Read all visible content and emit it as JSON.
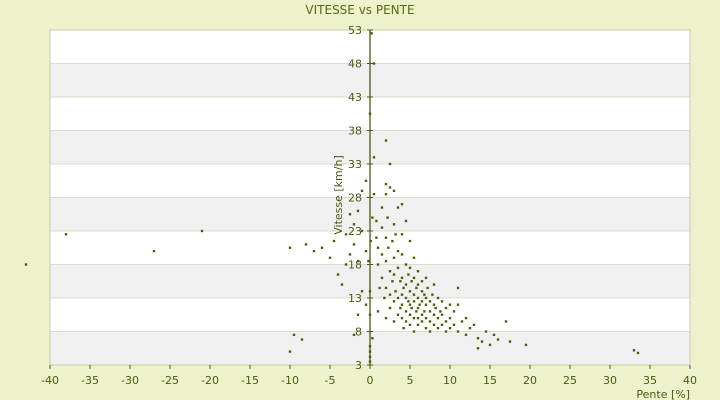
{
  "chart_data": {
    "type": "scatter",
    "title": "VITESSE vs PENTE",
    "xlabel": "Pente [%]",
    "ylabel": "Vitesse [km/h]",
    "xlim": [
      -40,
      40
    ],
    "ylim": [
      3,
      53
    ],
    "x_ticks": [
      -40,
      -35,
      -30,
      -25,
      -20,
      -15,
      -10,
      -5,
      0,
      5,
      10,
      15,
      20,
      25,
      30,
      35,
      40
    ],
    "y_ticks": [
      3,
      8,
      13,
      18,
      23,
      28,
      33,
      38,
      43,
      48,
      53
    ],
    "grid": true,
    "legend": "none",
    "colors": {
      "background": "#eef2cc",
      "band_light": "#ffffff",
      "band_dark": "#f0f0f0",
      "point": "#4f5e08",
      "axis": "#4a5a10"
    },
    "points": [
      [
        -43.0,
        18.0
      ],
      [
        -38.0,
        22.5
      ],
      [
        -27.0,
        20.0
      ],
      [
        -21.0,
        23.0
      ],
      [
        -10.0,
        5.0
      ],
      [
        -9.5,
        7.5
      ],
      [
        -8.5,
        6.8
      ],
      [
        -10.0,
        20.5
      ],
      [
        -8.0,
        21.0
      ],
      [
        -7.0,
        20.0
      ],
      [
        -6.0,
        20.5
      ],
      [
        -5.0,
        19.0
      ],
      [
        -4.5,
        21.5
      ],
      [
        -4.0,
        16.5
      ],
      [
        -3.5,
        15.0
      ],
      [
        -3.0,
        18.0
      ],
      [
        -2.5,
        19.5
      ],
      [
        -2.0,
        21.0
      ],
      [
        -2.0,
        24.0
      ],
      [
        -1.5,
        26.0
      ],
      [
        -1.5,
        18.5
      ],
      [
        -1.0,
        23.0
      ],
      [
        -1.0,
        29.0
      ],
      [
        -3.0,
        22.5
      ],
      [
        -2.5,
        25.5
      ],
      [
        -1.5,
        10.5
      ],
      [
        -2.0,
        7.5
      ],
      [
        -1.0,
        14.0
      ],
      [
        -0.5,
        12.0
      ],
      [
        -0.5,
        20.0
      ],
      [
        -0.2,
        18.5
      ],
      [
        -0.5,
        30.5
      ],
      [
        0.0,
        40.5
      ],
      [
        0.2,
        52.5
      ],
      [
        0.5,
        48.0
      ],
      [
        0.0,
        3.5
      ],
      [
        0.0,
        4.2
      ],
      [
        0.0,
        5.0
      ],
      [
        0.0,
        5.8
      ],
      [
        0.0,
        10.5
      ],
      [
        0.0,
        14.0
      ],
      [
        0.1,
        21.5
      ],
      [
        0.3,
        25.0
      ],
      [
        0.3,
        7.0
      ],
      [
        0.5,
        34.0
      ],
      [
        0.5,
        28.5
      ],
      [
        0.8,
        24.5
      ],
      [
        0.8,
        22.0
      ],
      [
        1.0,
        20.5
      ],
      [
        1.0,
        18.0
      ],
      [
        1.0,
        11.0
      ],
      [
        1.2,
        14.5
      ],
      [
        1.5,
        26.5
      ],
      [
        1.5,
        23.5
      ],
      [
        1.5,
        19.5
      ],
      [
        1.5,
        16.0
      ],
      [
        1.8,
        13.0
      ],
      [
        2.0,
        36.5
      ],
      [
        2.0,
        30.0
      ],
      [
        2.0,
        28.5
      ],
      [
        2.0,
        22.0
      ],
      [
        2.0,
        18.5
      ],
      [
        2.0,
        14.5
      ],
      [
        2.0,
        10.0
      ],
      [
        2.2,
        25.0
      ],
      [
        2.3,
        20.5
      ],
      [
        2.5,
        33.0
      ],
      [
        2.5,
        29.5
      ],
      [
        2.5,
        17.0
      ],
      [
        2.5,
        13.5
      ],
      [
        2.5,
        11.5
      ],
      [
        2.8,
        21.5
      ],
      [
        2.8,
        15.5
      ],
      [
        3.0,
        29.0
      ],
      [
        3.0,
        24.0
      ],
      [
        3.0,
        19.0
      ],
      [
        3.0,
        16.5
      ],
      [
        3.0,
        12.5
      ],
      [
        3.0,
        9.5
      ],
      [
        3.2,
        22.5
      ],
      [
        3.2,
        14.0
      ],
      [
        3.5,
        26.5
      ],
      [
        3.5,
        20.0
      ],
      [
        3.5,
        17.5
      ],
      [
        3.5,
        13.0
      ],
      [
        3.5,
        10.5
      ],
      [
        3.8,
        15.5
      ],
      [
        3.8,
        11.5
      ],
      [
        4.0,
        27.0
      ],
      [
        4.0,
        22.5
      ],
      [
        4.0,
        19.5
      ],
      [
        4.0,
        16.0
      ],
      [
        4.0,
        13.5
      ],
      [
        4.0,
        12.0
      ],
      [
        4.0,
        10.0
      ],
      [
        4.2,
        14.5
      ],
      [
        4.2,
        8.5
      ],
      [
        4.5,
        24.5
      ],
      [
        4.5,
        18.0
      ],
      [
        4.5,
        15.0
      ],
      [
        4.5,
        13.0
      ],
      [
        4.5,
        11.0
      ],
      [
        4.5,
        9.5
      ],
      [
        4.8,
        16.5
      ],
      [
        4.8,
        12.5
      ],
      [
        5.0,
        21.5
      ],
      [
        5.0,
        17.5
      ],
      [
        5.0,
        14.0
      ],
      [
        5.0,
        12.0
      ],
      [
        5.0,
        10.5
      ],
      [
        5.0,
        9.0
      ],
      [
        5.2,
        15.5
      ],
      [
        5.2,
        11.5
      ],
      [
        5.5,
        19.0
      ],
      [
        5.5,
        16.0
      ],
      [
        5.5,
        13.5
      ],
      [
        5.5,
        12.5
      ],
      [
        5.5,
        10.0
      ],
      [
        5.5,
        8.0
      ],
      [
        5.8,
        14.5
      ],
      [
        5.8,
        11.0
      ],
      [
        6.0,
        17.0
      ],
      [
        6.0,
        15.0
      ],
      [
        6.0,
        13.0
      ],
      [
        6.0,
        11.5
      ],
      [
        6.0,
        10.0
      ],
      [
        6.0,
        9.0
      ],
      [
        6.2,
        12.0
      ],
      [
        6.5,
        15.5
      ],
      [
        6.5,
        14.0
      ],
      [
        6.5,
        12.5
      ],
      [
        6.5,
        10.5
      ],
      [
        6.5,
        9.5
      ],
      [
        6.8,
        13.5
      ],
      [
        6.8,
        11.0
      ],
      [
        7.0,
        16.0
      ],
      [
        7.0,
        13.0
      ],
      [
        7.0,
        12.0
      ],
      [
        7.0,
        10.0
      ],
      [
        7.0,
        8.5
      ],
      [
        7.2,
        14.5
      ],
      [
        7.5,
        12.5
      ],
      [
        7.5,
        11.0
      ],
      [
        7.5,
        9.5
      ],
      [
        7.5,
        8.0
      ],
      [
        7.8,
        13.5
      ],
      [
        8.0,
        15.0
      ],
      [
        8.0,
        12.0
      ],
      [
        8.0,
        10.5
      ],
      [
        8.0,
        9.0
      ],
      [
        8.2,
        11.5
      ],
      [
        8.5,
        13.0
      ],
      [
        8.5,
        10.0
      ],
      [
        8.5,
        8.5
      ],
      [
        8.8,
        11.0
      ],
      [
        9.0,
        12.5
      ],
      [
        9.0,
        10.5
      ],
      [
        9.0,
        9.0
      ],
      [
        9.5,
        11.5
      ],
      [
        9.5,
        9.5
      ],
      [
        9.5,
        8.0
      ],
      [
        10.0,
        12.0
      ],
      [
        10.0,
        10.0
      ],
      [
        10.0,
        8.5
      ],
      [
        10.5,
        11.0
      ],
      [
        10.5,
        9.0
      ],
      [
        11.0,
        14.5
      ],
      [
        11.0,
        12.0
      ],
      [
        11.0,
        8.0
      ],
      [
        11.5,
        9.5
      ],
      [
        12.0,
        10.0
      ],
      [
        12.0,
        7.5
      ],
      [
        12.5,
        8.5
      ],
      [
        13.0,
        9.0
      ],
      [
        13.5,
        7.0
      ],
      [
        13.5,
        5.5
      ],
      [
        14.0,
        6.5
      ],
      [
        14.5,
        8.0
      ],
      [
        15.0,
        6.0
      ],
      [
        15.5,
        7.5
      ],
      [
        16.0,
        6.8
      ],
      [
        17.0,
        9.5
      ],
      [
        17.5,
        6.5
      ],
      [
        19.5,
        6.0
      ],
      [
        33.0,
        5.2
      ],
      [
        33.5,
        4.8
      ]
    ]
  }
}
